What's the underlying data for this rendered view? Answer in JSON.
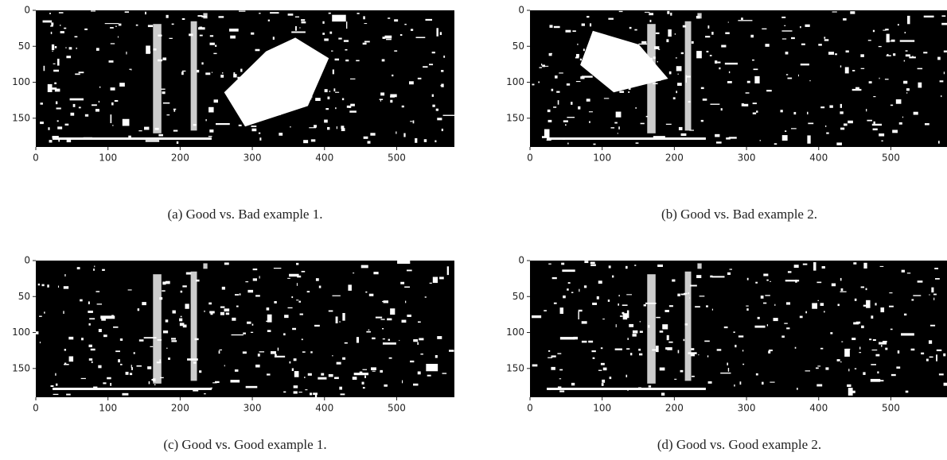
{
  "panels": [
    {
      "caption": "(a) Good vs. Bad example 1.",
      "xlim": [
        0,
        580
      ],
      "ylim": [
        190,
        0
      ],
      "xticks": [
        0,
        100,
        200,
        300,
        400,
        500
      ],
      "yticks": [
        0,
        50,
        100,
        150
      ]
    },
    {
      "caption": "(b) Good vs. Bad example 2.",
      "xlim": [
        0,
        580
      ],
      "ylim": [
        190,
        0
      ],
      "xticks": [
        0,
        100,
        200,
        300,
        400,
        500
      ],
      "yticks": [
        0,
        50,
        100,
        150
      ]
    },
    {
      "caption": "(c) Good vs. Good example 1.",
      "xlim": [
        0,
        580
      ],
      "ylim": [
        190,
        0
      ],
      "xticks": [
        0,
        100,
        200,
        300,
        400,
        500
      ],
      "yticks": [
        0,
        50,
        100,
        150
      ]
    },
    {
      "caption": "(d) Good vs. Good example 2.",
      "xlim": [
        0,
        580
      ],
      "ylim": [
        190,
        0
      ],
      "xticks": [
        0,
        100,
        200,
        300,
        400,
        500
      ],
      "yticks": [
        0,
        50,
        100,
        150
      ]
    }
  ]
}
